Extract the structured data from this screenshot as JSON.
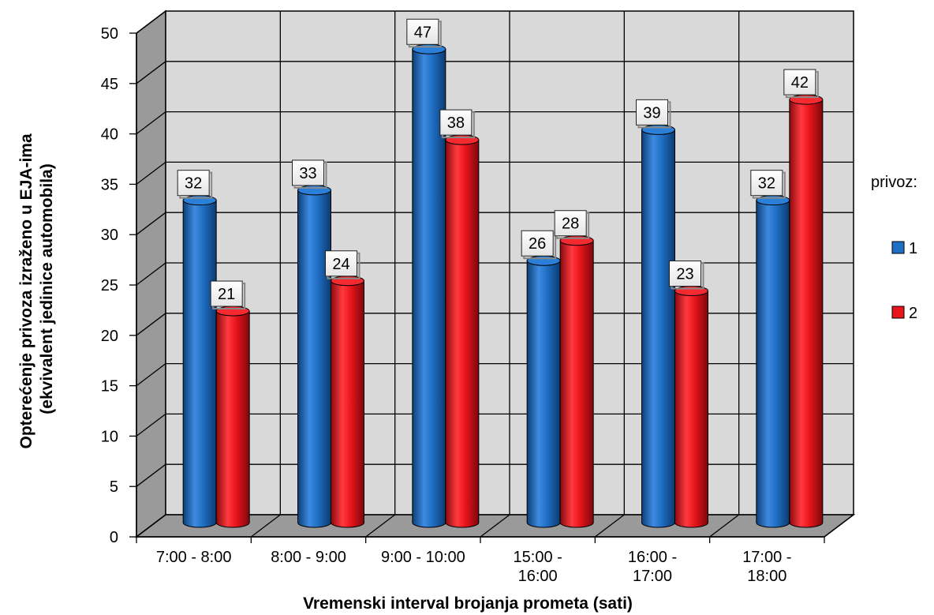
{
  "chart_data": {
    "type": "bar",
    "subtype": "3d-cylinder-clustered",
    "title": "",
    "xlabel": "Vremenski interval brojanja prometa (sati)",
    "ylabel_lines": [
      "Opterećenje privoza  izraženo u EJA-ima",
      "(ekvivalent jedinice automobila)"
    ],
    "ylim": [
      0,
      50
    ],
    "y_ticks": [
      "0",
      "5",
      "10",
      "15",
      "20",
      "25",
      "30",
      "35",
      "40",
      "45",
      "50"
    ],
    "categories": [
      [
        "7:00 - 8:00"
      ],
      [
        "8:00 - 9:00"
      ],
      [
        "9:00 - 10:00"
      ],
      [
        "15:00 -",
        "16:00"
      ],
      [
        "16:00 -",
        "17:00"
      ],
      [
        "17:00 -",
        "18:00"
      ]
    ],
    "legend_title": "privoz:",
    "legend_position": "right",
    "grid": true,
    "series": [
      {
        "name": "1",
        "color": "#1f6fc5",
        "values": [
          32,
          33,
          47,
          26,
          39,
          32
        ]
      },
      {
        "name": "2",
        "color": "#e8141b",
        "values": [
          21,
          24,
          38,
          28,
          23,
          42
        ]
      }
    ],
    "data_labels": [
      [
        "32",
        "33",
        "47",
        "26",
        "39",
        "32"
      ],
      [
        "21",
        "24",
        "38",
        "28",
        "23",
        "42"
      ]
    ]
  }
}
